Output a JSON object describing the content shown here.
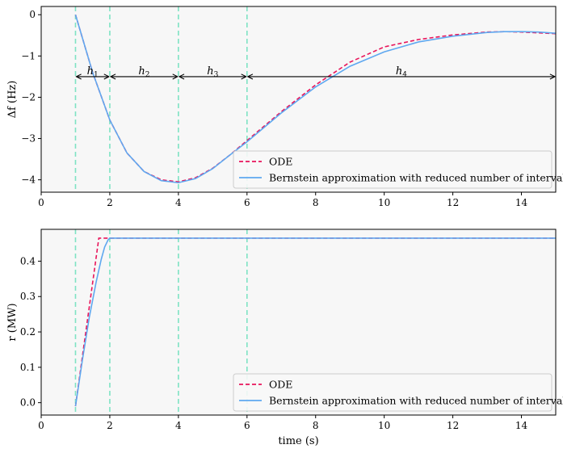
{
  "chart_data": [
    {
      "type": "line",
      "ylabel": "Δf (Hz)",
      "xlabel": "",
      "xlim": [
        0,
        15
      ],
      "ylim": [
        -4.3,
        0.2
      ],
      "x_ticks": [
        0,
        2,
        4,
        6,
        8,
        10,
        12,
        14
      ],
      "y_ticks": [
        0,
        -1,
        -2,
        -3,
        -4
      ],
      "x_tick_labels": [
        "0",
        "2",
        "4",
        "6",
        "8",
        "10",
        "12",
        "14"
      ],
      "y_tick_labels": [
        "0",
        "−1",
        "−2",
        "−3",
        "−4"
      ],
      "vlines": [
        1,
        2,
        4,
        6
      ],
      "intervals": [
        {
          "label": "h",
          "sub": "1",
          "from": 1,
          "to": 2,
          "y": -1.5
        },
        {
          "label": "h",
          "sub": "2",
          "from": 2,
          "to": 4,
          "y": -1.5
        },
        {
          "label": "h",
          "sub": "3",
          "from": 4,
          "to": 6,
          "y": -1.5
        },
        {
          "label": "h",
          "sub": "4",
          "from": 6,
          "to": 15,
          "y": -1.5
        }
      ],
      "legend_position": "lower-right",
      "series": [
        {
          "name": "ODE",
          "color": "#e8145a",
          "style": "dashed",
          "x": [
            1,
            1.5,
            2,
            2.5,
            3,
            3.5,
            4,
            4.5,
            5,
            5.5,
            6,
            7,
            8,
            9,
            10,
            11,
            12,
            13,
            13.5,
            14,
            14.5,
            15
          ],
          "y": [
            0,
            -1.4,
            -2.55,
            -3.35,
            -3.8,
            -4.0,
            -4.05,
            -3.95,
            -3.72,
            -3.4,
            -3.05,
            -2.35,
            -1.7,
            -1.15,
            -0.78,
            -0.6,
            -0.49,
            -0.42,
            -0.41,
            -0.42,
            -0.44,
            -0.46
          ]
        },
        {
          "name": "Bernstein approximation with reduced number of intervals",
          "color": "#5fa8f0",
          "style": "solid",
          "x": [
            1,
            1.5,
            2,
            2.5,
            3,
            3.5,
            4,
            4.5,
            5,
            5.5,
            6,
            7,
            8,
            9,
            10,
            11,
            12,
            13,
            13.5,
            14,
            14.5,
            15
          ],
          "y": [
            0,
            -1.4,
            -2.55,
            -3.35,
            -3.8,
            -4.02,
            -4.07,
            -3.97,
            -3.73,
            -3.4,
            -3.08,
            -2.38,
            -1.75,
            -1.25,
            -0.9,
            -0.66,
            -0.52,
            -0.43,
            -0.41,
            -0.41,
            -0.42,
            -0.45
          ]
        }
      ]
    },
    {
      "type": "line",
      "ylabel": "r (MW)",
      "xlabel": "time (s)",
      "xlim": [
        0,
        15
      ],
      "ylim": [
        -0.035,
        0.49
      ],
      "x_ticks": [
        0,
        2,
        4,
        6,
        8,
        10,
        12,
        14
      ],
      "y_ticks": [
        0,
        0.1,
        0.2,
        0.3,
        0.4
      ],
      "x_tick_labels": [
        "0",
        "2",
        "4",
        "6",
        "8",
        "10",
        "12",
        "14"
      ],
      "y_tick_labels": [
        "0.0",
        "0.1",
        "0.2",
        "0.3",
        "0.4"
      ],
      "vlines": [
        1,
        2,
        4,
        6
      ],
      "legend_position": "lower-right",
      "series": [
        {
          "name": "ODE",
          "color": "#e8145a",
          "style": "dashed",
          "x": [
            1,
            1.68,
            2,
            4,
            6,
            8,
            10,
            12,
            14,
            15
          ],
          "y": [
            -0.01,
            0.465,
            0.465,
            0.465,
            0.465,
            0.465,
            0.465,
            0.465,
            0.465,
            0.465
          ]
        },
        {
          "name": "Bernstein approximation with reduced number of intervals",
          "color": "#5fa8f0",
          "style": "solid",
          "x": [
            1,
            1.2,
            1.4,
            1.6,
            1.75,
            1.85,
            1.95,
            2,
            4,
            6,
            8,
            10,
            12,
            14,
            15
          ],
          "y": [
            -0.01,
            0.12,
            0.24,
            0.34,
            0.405,
            0.44,
            0.46,
            0.465,
            0.465,
            0.465,
            0.465,
            0.465,
            0.465,
            0.465,
            0.465
          ]
        }
      ]
    }
  ]
}
